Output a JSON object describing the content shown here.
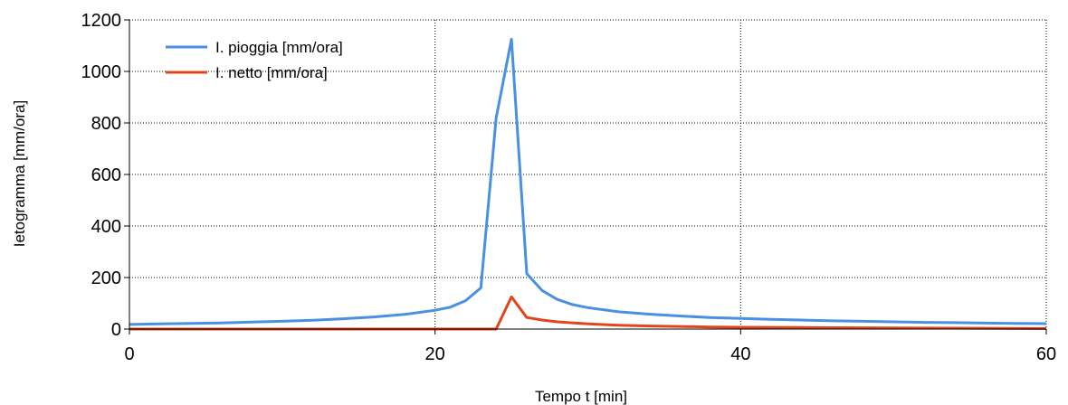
{
  "chart_data": {
    "type": "line",
    "xlabel": "Tempo t [min]",
    "ylabel": "Ietogramma [mm/ora]",
    "xlim": [
      0,
      60
    ],
    "ylim": [
      0,
      1200
    ],
    "xticks": [
      "0",
      "20",
      "40",
      "60"
    ],
    "yticks": [
      "0",
      "200",
      "400",
      "600",
      "800",
      "1000",
      "1200"
    ],
    "grid": true,
    "legend_position": "top-left",
    "series": [
      {
        "name": "I. pioggia [mm/ora]",
        "color": "#4a90e2",
        "x": [
          0,
          2,
          4,
          6,
          8,
          10,
          12,
          14,
          16,
          18,
          19,
          20,
          21,
          22,
          23,
          24,
          25,
          26,
          27,
          28,
          29,
          30,
          32,
          34,
          36,
          38,
          40,
          42,
          44,
          46,
          48,
          50,
          52,
          54,
          56,
          58,
          60
        ],
        "y": [
          18,
          20,
          22,
          24,
          27,
          30,
          34,
          40,
          47,
          57,
          65,
          73,
          85,
          110,
          160,
          820,
          1125,
          215,
          150,
          115,
          95,
          83,
          67,
          58,
          51,
          45,
          41,
          38,
          35,
          32,
          30,
          28,
          26,
          25,
          23,
          22,
          21
        ]
      },
      {
        "name": "I. netto [mm/ora]",
        "color": "#e0451b",
        "x": [
          0,
          24,
          25,
          26,
          27,
          28,
          30,
          32,
          34,
          36,
          38,
          40,
          44,
          48,
          52,
          56,
          60
        ],
        "y": [
          0,
          0,
          125,
          45,
          35,
          28,
          20,
          15,
          12,
          10,
          8,
          7,
          6,
          5,
          4,
          3,
          2
        ]
      }
    ]
  }
}
